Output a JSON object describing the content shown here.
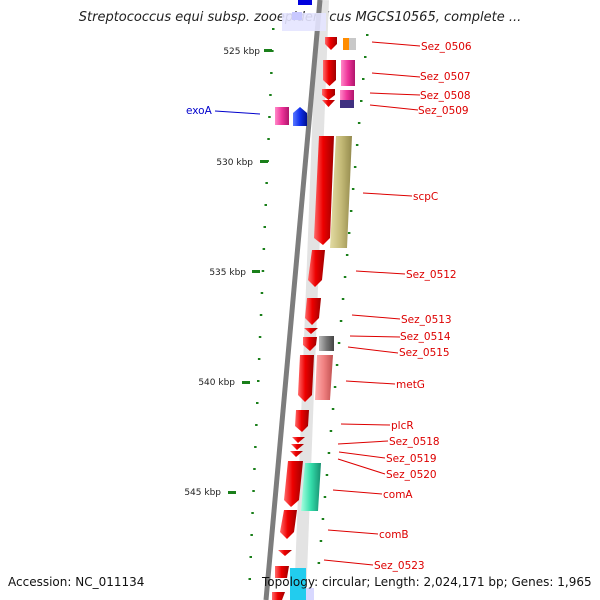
{
  "title": "Streptococcus equi subsp. zooepidemicus MGCS10565, complete ...",
  "footer": {
    "accession": "Accession: NC_011134",
    "topology": "Topology: circular; Length: 2,024,171 bp; Genes: 1,965"
  },
  "colors": {
    "backbone": "#7d7d7d",
    "ticks": "#1a7f1a",
    "label_red": "#dd0000",
    "label_blue": "#0000cc"
  },
  "scale_labels": [
    "525 kbp",
    "530 kbp",
    "535 kbp",
    "540 kbp",
    "545 kbp"
  ],
  "genes": [
    {
      "name": "Sez_0506",
      "color": "#dd0000"
    },
    {
      "name": "Sez_0507",
      "color": "#dd0000"
    },
    {
      "name": "Sez_0508",
      "color": "#dd0000"
    },
    {
      "name": "Sez_0509",
      "color": "#dd0000"
    },
    {
      "name": "exoA",
      "color": "#0000cc"
    },
    {
      "name": "scpC",
      "color": "#dd0000"
    },
    {
      "name": "Sez_0512",
      "color": "#dd0000"
    },
    {
      "name": "Sez_0513",
      "color": "#dd0000"
    },
    {
      "name": "Sez_0514",
      "color": "#dd0000"
    },
    {
      "name": "Sez_0515",
      "color": "#dd0000"
    },
    {
      "name": "metG",
      "color": "#dd0000"
    },
    {
      "name": "plcR",
      "color": "#dd0000"
    },
    {
      "name": "Sez_0518",
      "color": "#dd0000"
    },
    {
      "name": "Sez_0519",
      "color": "#dd0000"
    },
    {
      "name": "Sez_0520",
      "color": "#dd0000"
    },
    {
      "name": "comA",
      "color": "#dd0000"
    },
    {
      "name": "comB",
      "color": "#dd0000"
    },
    {
      "name": "Sez_0523",
      "color": "#dd0000"
    }
  ]
}
